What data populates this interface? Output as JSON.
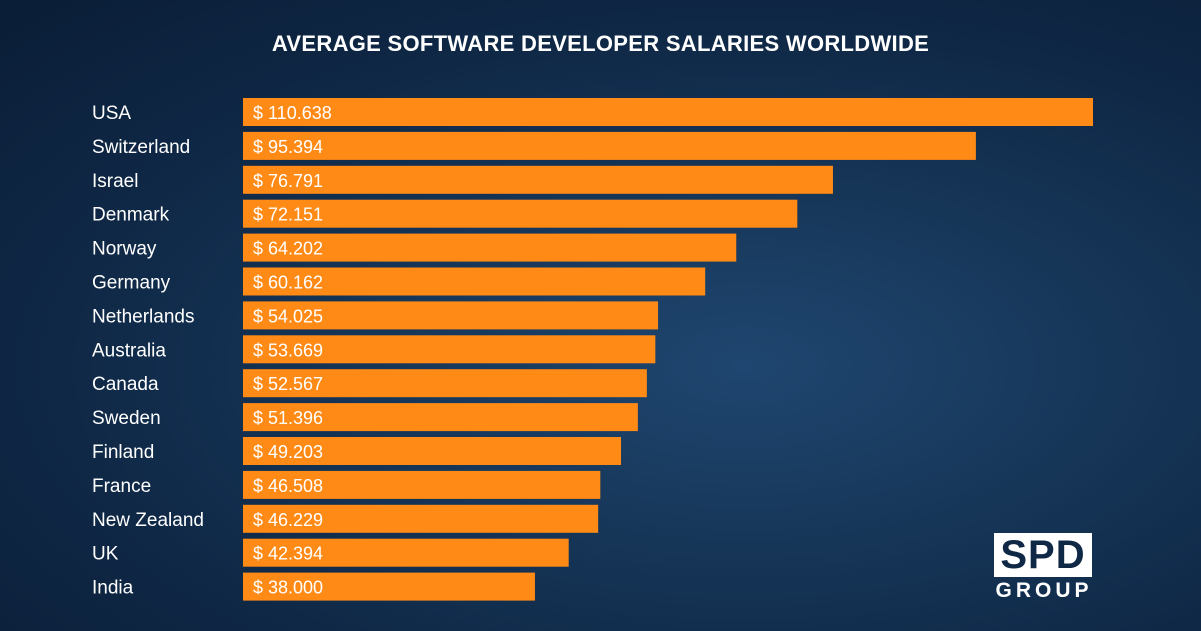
{
  "colors": {
    "bar": "#FF8A16",
    "text": "#ffffff",
    "background": "#0f2846"
  },
  "logo": {
    "main": "SPD",
    "sub": "GROUP"
  },
  "chart_data": {
    "type": "bar",
    "orientation": "horizontal",
    "title": "AVERAGE SOFTWARE DEVELOPER SALARIES WORLDWIDE",
    "categories": [
      "USA",
      "Switzerland",
      "Israel",
      "Denmark",
      "Norway",
      "Germany",
      "Netherlands",
      "Australia",
      "Canada",
      "Sweden",
      "Finland",
      "France",
      "New Zealand",
      "UK",
      "India"
    ],
    "values": [
      110638,
      95394,
      76791,
      72151,
      64202,
      60162,
      54025,
      53669,
      52567,
      51396,
      49203,
      46508,
      46229,
      42394,
      38000
    ],
    "value_labels": [
      "$ 110.638",
      "$ 95.394",
      "$ 76.791",
      "$ 72.151",
      "$ 64.202",
      "$ 60.162",
      "$ 54.025",
      "$ 53.669",
      "$ 52.567",
      "$ 51.396",
      "$ 49.203",
      "$ 46.508",
      "$ 46.229",
      "$ 42.394",
      "$ 38.000"
    ],
    "xlim": [
      0,
      110638
    ],
    "grid": false,
    "legend": "none"
  }
}
